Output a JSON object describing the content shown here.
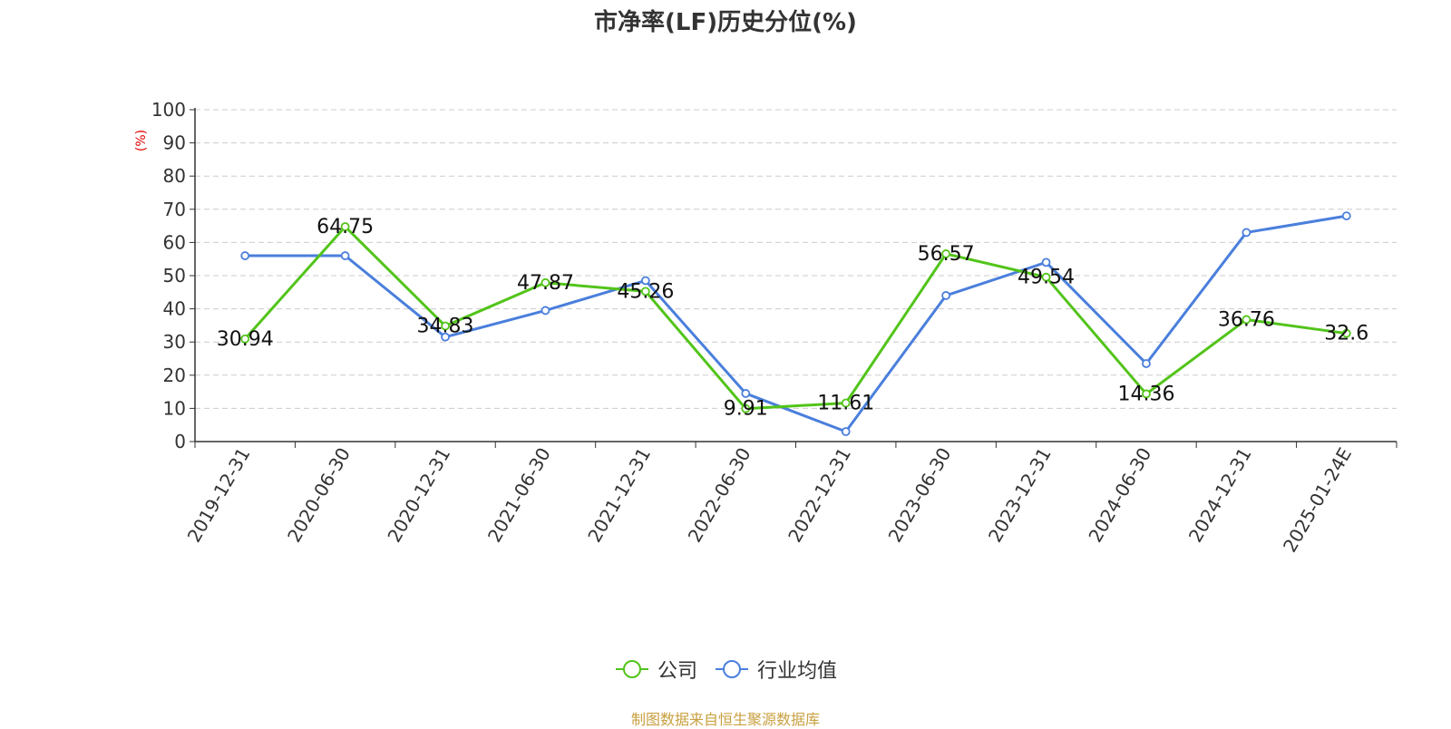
{
  "chart_data": {
    "type": "line",
    "title": "市净率(LF)历史分位(%)",
    "ylabel": "(%)",
    "xlabel": "",
    "ylim": [
      0,
      100
    ],
    "yticks": [
      0,
      10,
      20,
      30,
      40,
      50,
      60,
      70,
      80,
      90,
      100
    ],
    "grid": true,
    "legend_position": "bottom",
    "categories": [
      "2019-12-31",
      "2020-06-30",
      "2020-12-31",
      "2021-06-30",
      "2021-12-31",
      "2022-06-30",
      "2022-12-31",
      "2023-06-30",
      "2023-12-31",
      "2024-06-30",
      "2024-12-31",
      "2025-01-24E"
    ],
    "series": [
      {
        "name": "公司",
        "color": "#52c41a",
        "values": [
          30.94,
          64.75,
          34.83,
          47.87,
          45.26,
          9.91,
          11.61,
          56.57,
          49.54,
          14.36,
          36.76,
          32.6
        ],
        "labels": [
          "30.94",
          "64.75",
          "34.83",
          "47.87",
          "45.26",
          "9.91",
          "11.61",
          "56.57",
          "49.54",
          "14.36",
          "36.76",
          "32.6"
        ]
      },
      {
        "name": "行业均值",
        "color": "#4a7fdc",
        "values": [
          56,
          56,
          31.5,
          39.5,
          48.5,
          14.5,
          3,
          44,
          54,
          23.5,
          63,
          68
        ]
      }
    ]
  },
  "source_note": "制图数据来自恒生聚源数据库"
}
